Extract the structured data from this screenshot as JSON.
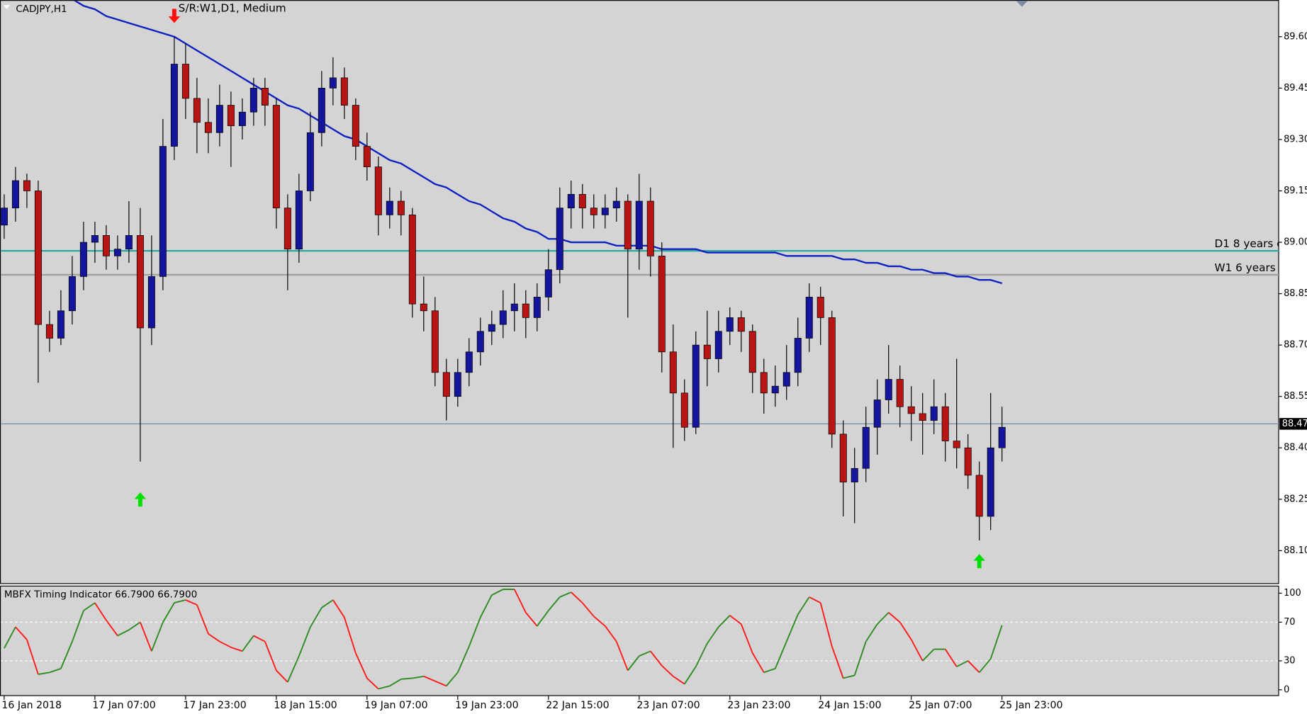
{
  "chart_data": [
    {
      "type": "candlestick",
      "title": "CADJPY,H1",
      "subtitle": "S/R:W1,D1, Medium",
      "up_color": "#14149c",
      "down_color": "#b81414",
      "wick_color": "#000000",
      "open": [
        89.05,
        89.1,
        89.18,
        89.15,
        88.76,
        88.72,
        88.8,
        88.9,
        89.0,
        89.02,
        88.96,
        88.98,
        89.02,
        88.75,
        88.9,
        89.28,
        89.52,
        89.42,
        89.35,
        89.32,
        89.4,
        89.34,
        89.38,
        89.45,
        89.4,
        89.1,
        88.98,
        89.15,
        89.32,
        89.45,
        89.48,
        89.4,
        89.28,
        89.22,
        89.08,
        89.12,
        89.08,
        88.82,
        88.8,
        88.62,
        88.55,
        88.62,
        88.68,
        88.74,
        88.76,
        88.8,
        88.82,
        88.78,
        88.84,
        88.92,
        89.1,
        89.14,
        89.1,
        89.08,
        89.1,
        89.12,
        88.98,
        89.12,
        88.96,
        88.68,
        88.56,
        88.46,
        88.7,
        88.66,
        88.74,
        88.78,
        88.74,
        88.62,
        88.56,
        88.58,
        88.62,
        88.72,
        88.84,
        88.78,
        88.44,
        88.3,
        88.34,
        88.46,
        88.54,
        88.6,
        88.52,
        88.5,
        88.48,
        88.52,
        88.42,
        88.4,
        88.32,
        88.2,
        88.4
      ],
      "high": [
        89.14,
        89.22,
        89.2,
        89.18,
        88.8,
        88.86,
        88.96,
        89.06,
        89.06,
        89.05,
        89.02,
        89.12,
        89.1,
        89.02,
        89.36,
        89.6,
        89.58,
        89.48,
        89.42,
        89.46,
        89.44,
        89.42,
        89.48,
        89.48,
        89.42,
        89.14,
        89.2,
        89.38,
        89.5,
        89.54,
        89.51,
        89.42,
        89.32,
        89.25,
        89.16,
        89.15,
        89.1,
        88.9,
        88.84,
        88.66,
        88.66,
        88.72,
        88.78,
        88.8,
        88.86,
        88.88,
        88.86,
        88.88,
        88.98,
        89.16,
        89.18,
        89.17,
        89.14,
        89.14,
        89.16,
        89.14,
        89.2,
        89.16,
        89.0,
        88.76,
        88.6,
        88.74,
        88.8,
        88.8,
        88.81,
        88.8,
        88.76,
        88.66,
        88.64,
        88.7,
        88.78,
        88.88,
        88.87,
        88.8,
        88.48,
        88.4,
        88.52,
        88.6,
        88.7,
        88.64,
        88.58,
        88.56,
        88.6,
        88.56,
        88.66,
        88.44,
        88.36,
        88.56,
        88.52
      ],
      "low": [
        89.01,
        89.06,
        89.1,
        88.59,
        88.68,
        88.7,
        88.76,
        88.86,
        88.94,
        88.92,
        88.92,
        88.94,
        88.36,
        88.7,
        88.86,
        89.24,
        89.36,
        89.26,
        89.26,
        89.28,
        89.22,
        89.3,
        89.34,
        89.34,
        89.04,
        88.86,
        88.94,
        89.12,
        89.28,
        89.4,
        89.36,
        89.24,
        89.18,
        89.02,
        89.04,
        89.02,
        88.78,
        88.74,
        88.58,
        88.48,
        88.52,
        88.58,
        88.64,
        88.7,
        88.72,
        88.74,
        88.72,
        88.74,
        88.8,
        88.88,
        89.04,
        89.04,
        89.04,
        89.04,
        89.06,
        88.78,
        88.92,
        88.9,
        88.62,
        88.4,
        88.42,
        88.44,
        88.58,
        88.62,
        88.7,
        88.68,
        88.56,
        88.5,
        88.52,
        88.54,
        88.58,
        88.68,
        88.7,
        88.4,
        88.2,
        88.18,
        88.3,
        88.38,
        88.5,
        88.46,
        88.42,
        88.38,
        88.44,
        88.36,
        88.34,
        88.28,
        88.13,
        88.16,
        88.36
      ],
      "close": [
        89.1,
        89.18,
        89.15,
        88.76,
        88.72,
        88.8,
        88.9,
        89.0,
        89.02,
        88.96,
        88.98,
        89.02,
        88.75,
        88.9,
        89.28,
        89.52,
        89.42,
        89.35,
        89.32,
        89.4,
        89.34,
        89.38,
        89.45,
        89.4,
        89.1,
        88.98,
        89.15,
        89.32,
        89.45,
        89.48,
        89.4,
        89.28,
        89.22,
        89.08,
        89.12,
        89.08,
        88.82,
        88.8,
        88.62,
        88.55,
        88.62,
        88.68,
        88.74,
        88.76,
        88.8,
        88.82,
        88.78,
        88.84,
        88.92,
        89.1,
        89.14,
        89.1,
        89.08,
        89.1,
        89.12,
        88.98,
        89.12,
        88.96,
        88.68,
        88.56,
        88.46,
        88.7,
        88.66,
        88.74,
        88.78,
        88.74,
        88.62,
        88.56,
        88.58,
        88.62,
        88.72,
        88.84,
        88.78,
        88.44,
        88.3,
        88.34,
        88.46,
        88.54,
        88.6,
        88.52,
        88.5,
        88.48,
        88.52,
        88.42,
        88.4,
        88.32,
        88.2,
        88.4,
        88.46
      ],
      "ma": {
        "color": "#1020c0",
        "values": [
          null,
          null,
          null,
          null,
          null,
          null,
          89.71,
          89.69,
          89.68,
          89.66,
          89.65,
          89.64,
          89.63,
          89.62,
          89.61,
          89.6,
          89.58,
          89.56,
          89.54,
          89.52,
          89.5,
          89.48,
          89.46,
          89.44,
          89.42,
          89.4,
          89.39,
          89.37,
          89.35,
          89.33,
          89.31,
          89.3,
          89.28,
          89.26,
          89.24,
          89.23,
          89.21,
          89.19,
          89.17,
          89.16,
          89.14,
          89.12,
          89.11,
          89.09,
          89.07,
          89.06,
          89.04,
          89.03,
          89.01,
          89.01,
          89.0,
          89.0,
          89.0,
          89.0,
          88.99,
          88.99,
          88.99,
          88.99,
          88.98,
          88.98,
          88.98,
          88.98,
          88.97,
          88.97,
          88.97,
          88.97,
          88.97,
          88.97,
          88.97,
          88.96,
          88.96,
          88.96,
          88.96,
          88.96,
          88.95,
          88.95,
          88.94,
          88.94,
          88.93,
          88.93,
          88.92,
          88.92,
          88.91,
          88.91,
          88.9,
          88.9,
          88.89,
          88.89,
          88.88
        ]
      },
      "levels": [
        {
          "label": "D1 8 years o",
          "value": 88.975,
          "color": "#2aa7a0"
        },
        {
          "label": "W1 6 years o",
          "value": 88.905,
          "color": "#a0a0a0"
        }
      ],
      "last_price": {
        "value": 88.47,
        "color": "#7a8aa8"
      },
      "arrows": [
        {
          "x": 15,
          "y": 89.64,
          "direction": "down",
          "color": "#ff1010"
        },
        {
          "x": 12,
          "y": 88.27,
          "direction": "up",
          "color": "#00e000"
        },
        {
          "x": 86,
          "y": 88.09,
          "direction": "up",
          "color": "#00e000"
        }
      ],
      "xlim": [
        -0.37,
        112.4
      ],
      "xticks": [
        {
          "value": 0,
          "label": "16 Jan 2018"
        },
        {
          "value": 8,
          "label": "17 Jan 07:00"
        },
        {
          "value": 16,
          "label": "17 Jan 23:00"
        },
        {
          "value": 24,
          "label": "18 Jan 15:00"
        },
        {
          "value": 32,
          "label": "19 Jan 07:00"
        },
        {
          "value": 40,
          "label": "19 Jan 23:00"
        },
        {
          "value": 48,
          "label": "22 Jan 15:00"
        },
        {
          "value": 56,
          "label": "23 Jan 07:00"
        },
        {
          "value": 64,
          "label": "23 Jan 23:00"
        },
        {
          "value": 72,
          "label": "24 Jan 15:00"
        },
        {
          "value": 80,
          "label": "25 Jan 07:00"
        },
        {
          "value": 88,
          "label": "25 Jan 23:00"
        }
      ],
      "ylim": [
        88.005,
        89.707
      ],
      "yticks": [
        {
          "value": 89.6,
          "label": "89.60"
        },
        89.45,
        {
          "value": 89.3,
          "label": "89.30"
        },
        89.15,
        {
          "value": 89.0,
          "label": "89.00"
        },
        88.85,
        {
          "value": 88.7,
          "label": "88.70"
        },
        88.55,
        {
          "value": 88.4,
          "label": "88.40"
        },
        88.25,
        {
          "value": 88.1,
          "label": "88.10"
        }
      ]
    },
    {
      "type": "line",
      "title": "MBFX Timing Indicator 66.7900 66.7900",
      "up_color": "#2e8b22",
      "down_color": "#ff1a1a",
      "values": [
        43,
        65,
        52,
        16,
        18,
        22,
        50,
        82,
        90,
        72,
        56,
        62,
        70,
        40,
        70,
        90,
        93,
        88,
        58,
        50,
        44,
        40,
        56,
        50,
        20,
        8,
        35,
        65,
        85,
        93,
        75,
        38,
        12,
        1,
        4,
        11,
        12,
        14,
        9,
        4,
        18,
        45,
        75,
        98,
        104,
        104,
        80,
        66,
        82,
        96,
        101,
        90,
        76,
        66,
        50,
        20,
        35,
        40,
        25,
        14,
        6,
        24,
        48,
        65,
        77,
        68,
        38,
        18,
        22,
        50,
        78,
        96,
        90,
        45,
        12,
        15,
        50,
        68,
        80,
        70,
        52,
        30,
        42,
        42,
        24,
        30,
        18,
        32,
        66.79
      ],
      "ylim": [
        -6,
        107.8
      ],
      "yticks": [
        100,
        70,
        30,
        0
      ],
      "levels": [
        70,
        30
      ]
    }
  ]
}
